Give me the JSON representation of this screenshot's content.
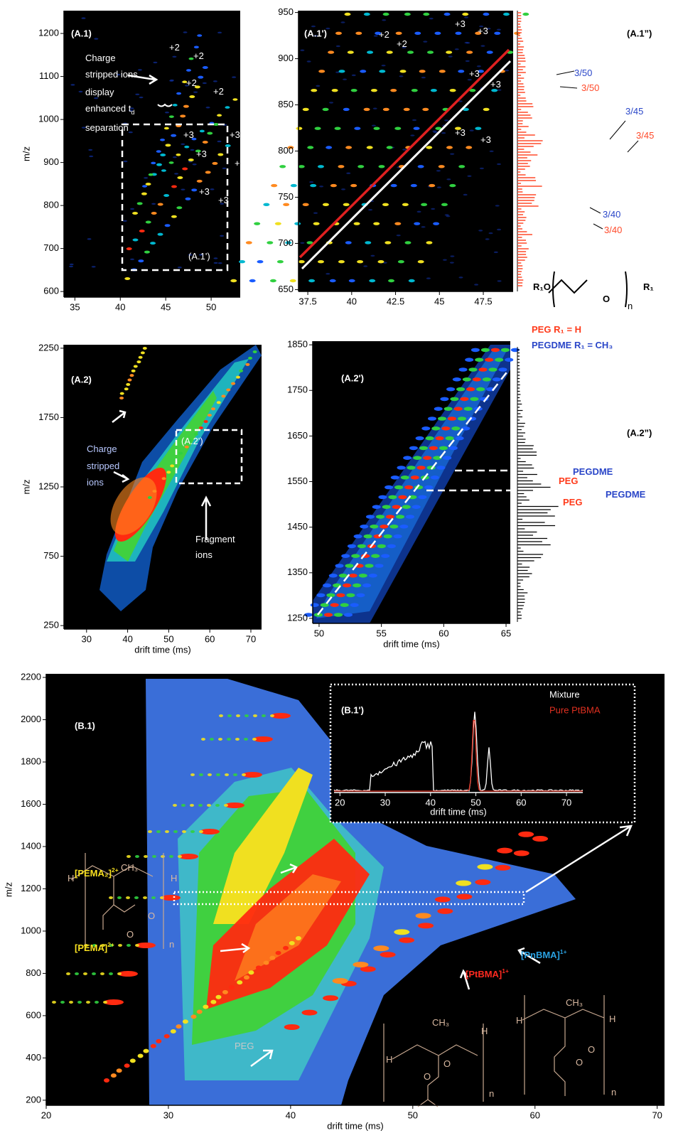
{
  "chart_data": [
    {
      "type": "heatmap",
      "title": "(A.1)",
      "ylabel": "m/z",
      "xlim": [
        33.8,
        53.2
      ],
      "xticks": [
        35,
        40,
        45,
        50
      ],
      "ylim": [
        587,
        1253
      ],
      "yticks": [
        600,
        700,
        800,
        900,
        1000,
        1100,
        1200
      ],
      "annotations": [
        {
          "text": "+2"
        },
        {
          "text": "+2"
        },
        {
          "text": "+2"
        },
        {
          "text": "+2"
        },
        {
          "text": "+3"
        },
        {
          "text": "+3"
        },
        {
          "text": "+3"
        },
        {
          "text": "+3"
        },
        {
          "text": "+3"
        },
        {
          "text": "+3"
        },
        {
          "text": "Charge"
        },
        {
          "text": "stripped ions"
        },
        {
          "text": "display"
        },
        {
          "text": "enhanced t",
          "sub": "d"
        },
        {
          "text": "separation"
        },
        {
          "text": "(A.1')"
        }
      ]
    },
    {
      "type": "heatmap",
      "title": "(A.1')",
      "xlim": [
        36.97,
        49.2
      ],
      "xticks": [
        37.5,
        40,
        42.5,
        45,
        47.5
      ],
      "ylim": [
        648,
        952
      ],
      "yticks": [
        650,
        700,
        750,
        800,
        850,
        900,
        950
      ],
      "annotations": [
        {
          "text": "+3"
        },
        {
          "text": "+3"
        },
        {
          "text": "+2"
        },
        {
          "text": "+2"
        },
        {
          "text": "+3"
        },
        {
          "text": "+3"
        },
        {
          "text": "+3"
        },
        {
          "text": "+3"
        }
      ]
    },
    {
      "type": "spectrum",
      "title": "(A.1”)",
      "annotations": [
        {
          "text": "3/50"
        },
        {
          "text": "3/50"
        },
        {
          "text": "3/45"
        },
        {
          "text": "3/45"
        },
        {
          "text": "3/40"
        },
        {
          "text": "3/40"
        },
        {
          "text": "R₁O"
        },
        {
          "text": "O"
        },
        {
          "text": "R₁"
        },
        {
          "text": "n"
        },
        {
          "text": "PEG  R₁ = H"
        },
        {
          "text": "PEGDME  R₁ = CH₃"
        }
      ]
    },
    {
      "type": "heatmap",
      "title": "(A.2)",
      "xlabel": "drift time (ms)",
      "ylabel": "m/z",
      "xlim": [
        24.5,
        72.6
      ],
      "xticks": [
        30,
        40,
        50,
        60,
        70
      ],
      "ylim": [
        225,
        2275
      ],
      "yticks": [
        250,
        750,
        1250,
        1750,
        2250
      ],
      "annotations": [
        {
          "text": "Charge"
        },
        {
          "text": "stripped"
        },
        {
          "text": "ions"
        },
        {
          "text": "(A.2')"
        },
        {
          "text": "Fragment"
        },
        {
          "text": "ions"
        }
      ]
    },
    {
      "type": "heatmap",
      "title": "(A.2')",
      "xlabel": "drift time (ms)",
      "xlim": [
        49.49,
        65.34
      ],
      "xticks": [
        50,
        55,
        60,
        65
      ],
      "ylim": [
        1239,
        1858
      ],
      "yticks": [
        1250,
        1350,
        1450,
        1550,
        1650,
        1750,
        1850
      ]
    },
    {
      "type": "spectrum",
      "title": "(A.2”)",
      "annotations": [
        {
          "text": "PEGDME"
        },
        {
          "text": "PEG"
        },
        {
          "text": "PEGDME"
        },
        {
          "text": "PEG"
        }
      ]
    },
    {
      "type": "heatmap",
      "title": "(B.1)",
      "xlabel": "drift time (ms)",
      "ylabel": "m/z",
      "xlim": [
        20,
        70.6
      ],
      "xticks": [
        20,
        30,
        40,
        50,
        60,
        70
      ],
      "ylim": [
        176,
        2217
      ],
      "yticks": [
        200,
        400,
        600,
        800,
        1000,
        1200,
        1400,
        1600,
        1800,
        2000,
        2200
      ],
      "annotations": [
        {
          "text": "[PEMA₂]",
          "sup": "2+"
        },
        {
          "text": "[PEMA]",
          "sup": "2+"
        },
        {
          "text": "[PtBMA]",
          "sup": "1+"
        },
        {
          "text": "[PnBMA]",
          "sup": "1+"
        },
        {
          "text": "PEG"
        },
        {
          "text": "H"
        },
        {
          "text": "CH₃"
        },
        {
          "text": "H"
        },
        {
          "text": "O"
        },
        {
          "text": "O"
        },
        {
          "text": "n"
        },
        {
          "text": "CH₃"
        },
        {
          "text": "H"
        },
        {
          "text": "H"
        },
        {
          "text": "O"
        },
        {
          "text": "O"
        },
        {
          "text": "n"
        },
        {
          "text": "H"
        },
        {
          "text": "CH₃"
        },
        {
          "text": "H"
        },
        {
          "text": "O"
        },
        {
          "text": "O"
        },
        {
          "text": "n"
        }
      ]
    },
    {
      "type": "line",
      "title": "(B.1')",
      "xlabel": "drift time (ms)",
      "xlim": [
        18.7,
        73.6
      ],
      "xticks": [
        20,
        30,
        40,
        50,
        60,
        70
      ],
      "series": [
        {
          "name": "Mixture",
          "color": "#ffffff"
        },
        {
          "name": "Pure PtBMA",
          "color": "#e03020"
        }
      ]
    }
  ]
}
